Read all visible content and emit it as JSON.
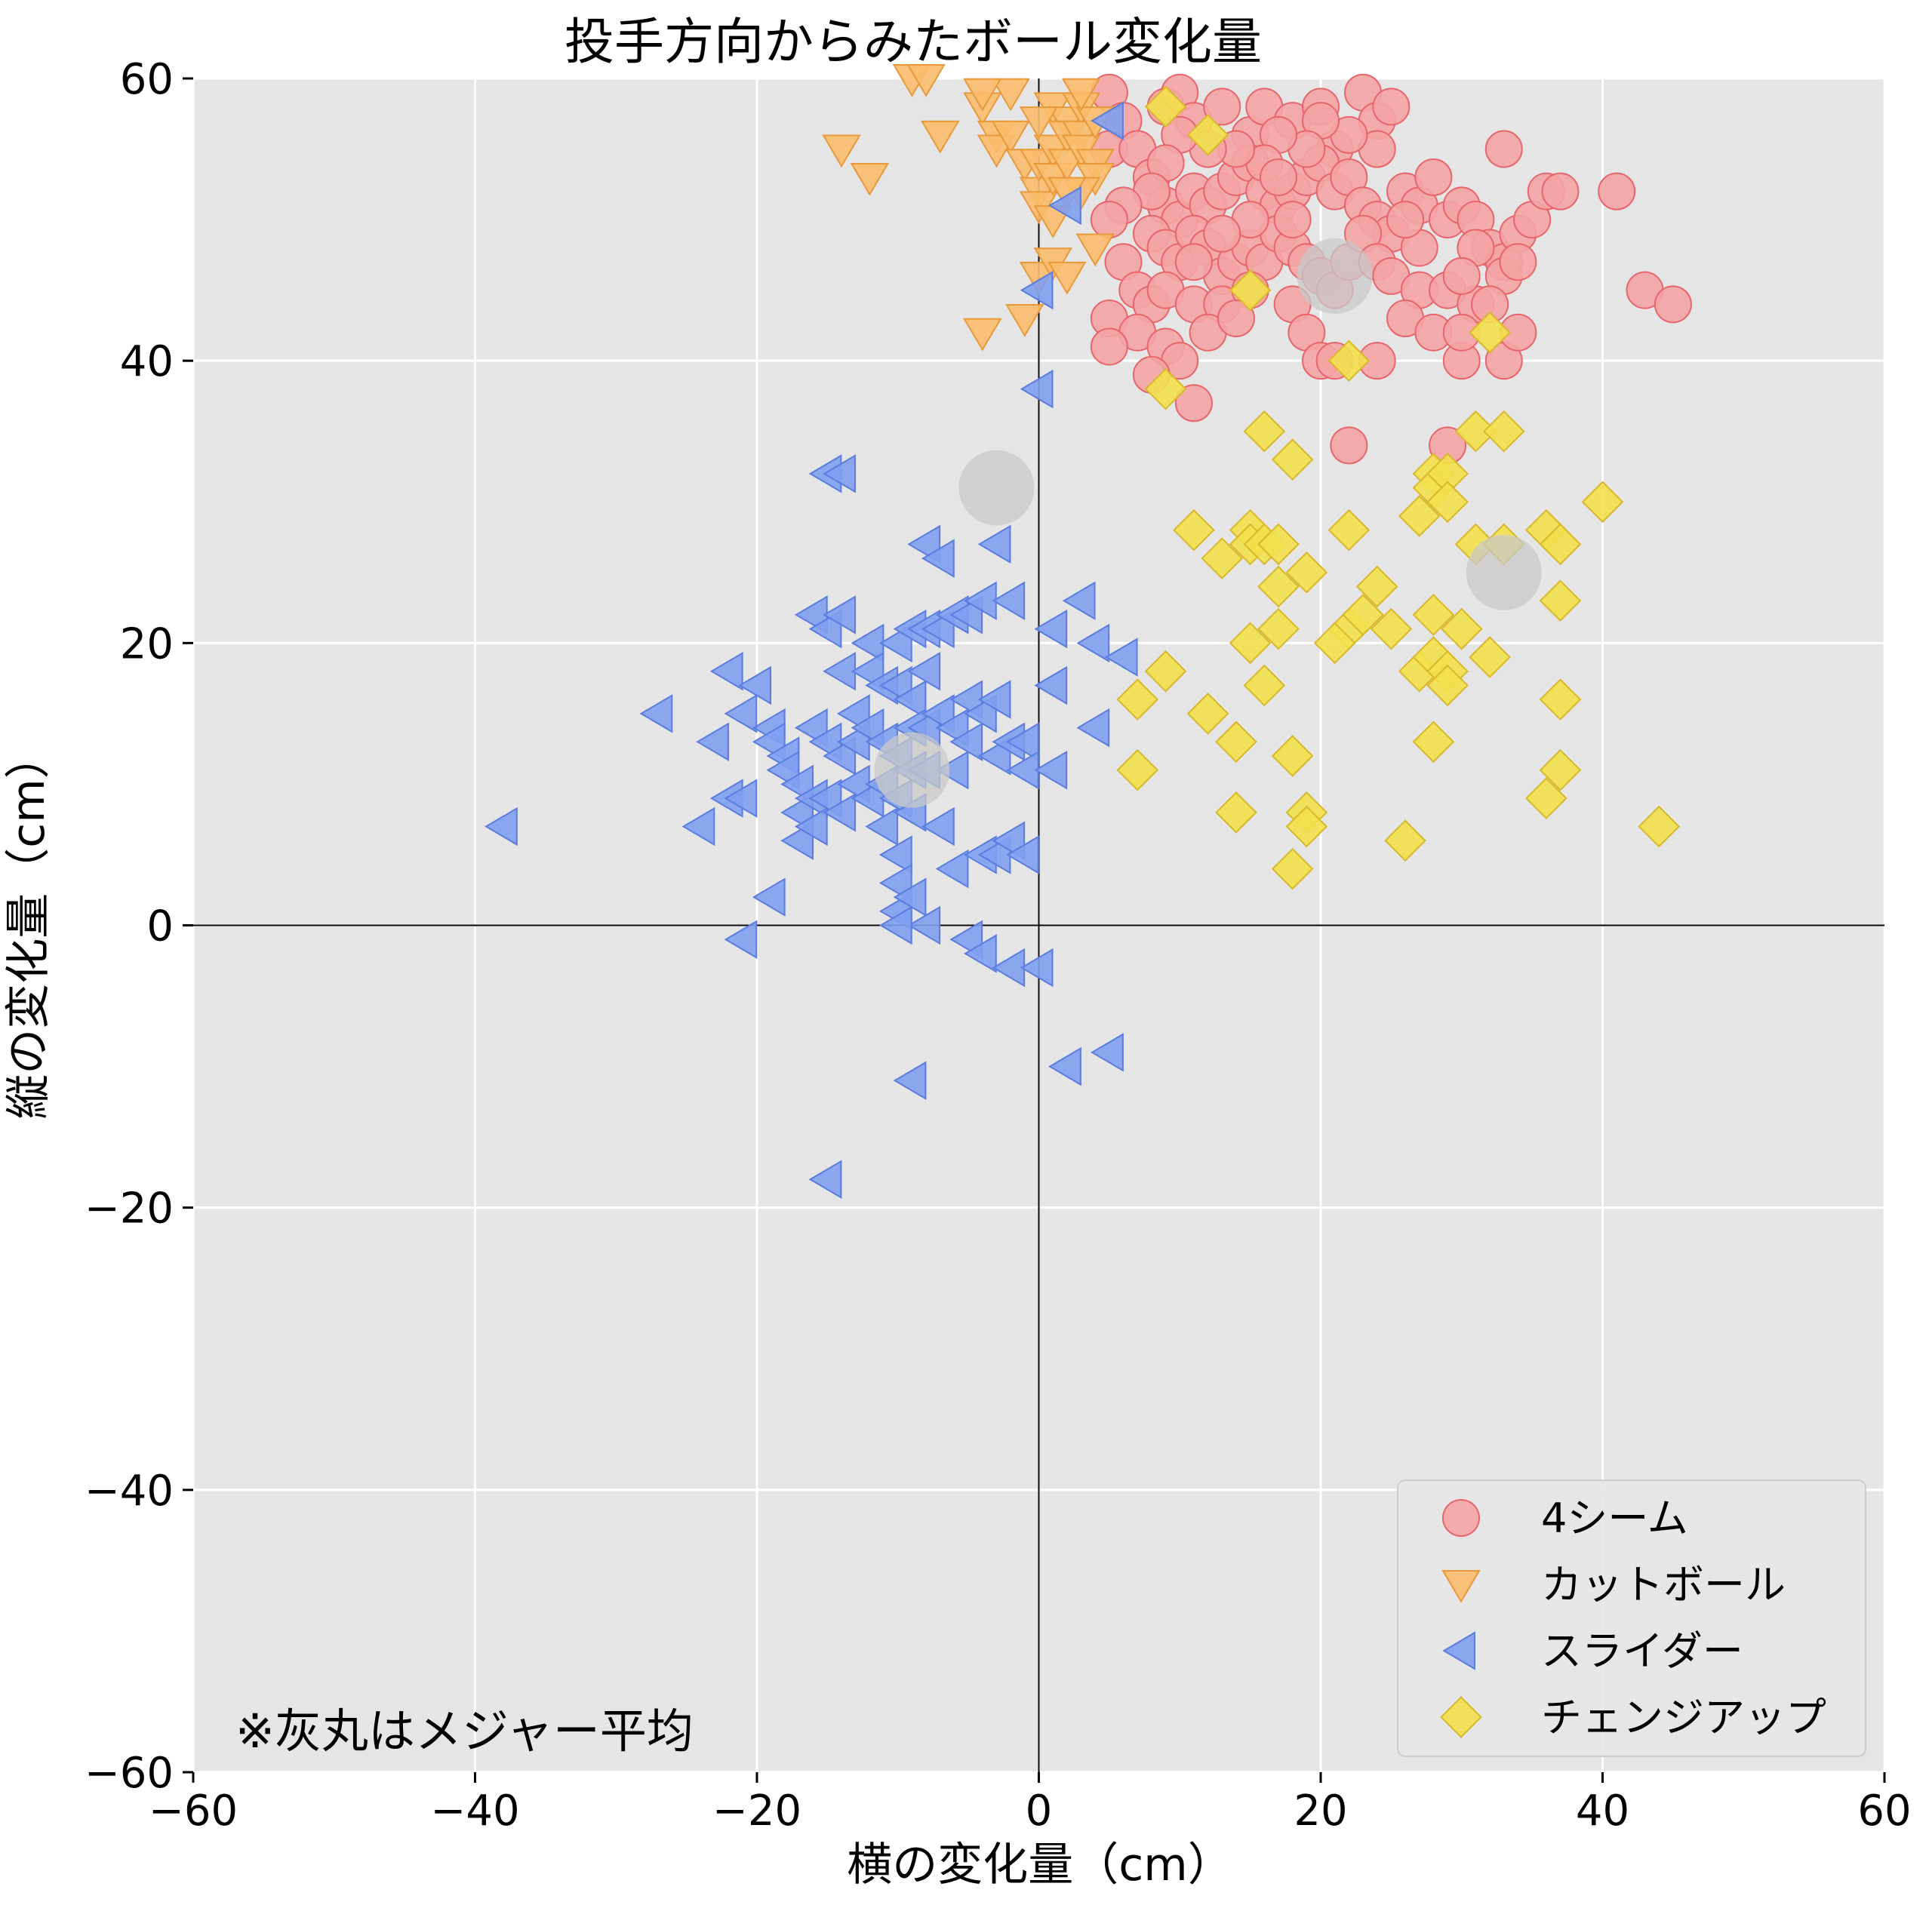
{
  "chart_data": {
    "type": "scatter",
    "title": "投手方向からみたボール変化量",
    "xlabel": "横の変化量（cm）",
    "ylabel": "縦の変化量（cm）",
    "xlim": [
      -60,
      60
    ],
    "ylim": [
      -60,
      60
    ],
    "xticks": [
      -60,
      -40,
      -20,
      0,
      20,
      40,
      60
    ],
    "yticks": [
      -60,
      -40,
      -20,
      0,
      20,
      40,
      60
    ],
    "grid": true,
    "background": "#e5e5e5",
    "legend_position": "bottom-right",
    "note": "※灰丸はメジャー平均",
    "series": [
      {
        "name": "4シーム",
        "marker": "circle",
        "color": "#f4a3a3",
        "edge": "#e8656b",
        "points": [
          [
            5,
            59
          ],
          [
            6,
            57
          ],
          [
            5,
            55
          ],
          [
            7,
            55
          ],
          [
            9,
            58
          ],
          [
            10,
            59
          ],
          [
            11,
            57
          ],
          [
            13,
            58
          ],
          [
            15,
            56
          ],
          [
            16,
            58
          ],
          [
            18,
            57
          ],
          [
            20,
            58
          ],
          [
            21,
            55
          ],
          [
            23,
            59
          ],
          [
            24,
            57
          ],
          [
            25,
            58
          ],
          [
            8,
            53
          ],
          [
            9,
            51
          ],
          [
            10,
            50
          ],
          [
            11,
            52
          ],
          [
            12,
            51
          ],
          [
            13,
            52
          ],
          [
            14,
            53
          ],
          [
            15,
            54
          ],
          [
            16,
            52
          ],
          [
            17,
            51
          ],
          [
            18,
            52
          ],
          [
            19,
            53
          ],
          [
            20,
            54
          ],
          [
            21,
            52
          ],
          [
            22,
            53
          ],
          [
            23,
            51
          ],
          [
            24,
            50
          ],
          [
            25,
            49
          ],
          [
            26,
            52
          ],
          [
            27,
            51
          ],
          [
            28,
            53
          ],
          [
            29,
            50
          ],
          [
            30,
            51
          ],
          [
            31,
            50
          ],
          [
            32,
            48
          ],
          [
            33,
            47
          ],
          [
            34,
            49
          ],
          [
            35,
            50
          ],
          [
            36,
            52
          ],
          [
            8,
            49
          ],
          [
            9,
            48
          ],
          [
            10,
            47
          ],
          [
            11,
            49
          ],
          [
            12,
            48
          ],
          [
            13,
            46
          ],
          [
            14,
            47
          ],
          [
            15,
            48
          ],
          [
            16,
            47
          ],
          [
            17,
            49
          ],
          [
            18,
            48
          ],
          [
            19,
            47
          ],
          [
            20,
            46
          ],
          [
            21,
            45
          ],
          [
            22,
            47
          ],
          [
            23,
            49
          ],
          [
            24,
            47
          ],
          [
            25,
            46
          ],
          [
            27,
            45
          ],
          [
            29,
            45
          ],
          [
            31,
            44
          ],
          [
            33,
            46
          ],
          [
            34,
            47
          ],
          [
            6,
            47
          ],
          [
            7,
            45
          ],
          [
            8,
            44
          ],
          [
            9,
            45
          ],
          [
            11,
            44
          ],
          [
            13,
            44
          ],
          [
            15,
            45
          ],
          [
            5,
            43
          ],
          [
            7,
            42
          ],
          [
            9,
            41
          ],
          [
            10,
            40
          ],
          [
            12,
            42
          ],
          [
            14,
            43
          ],
          [
            18,
            44
          ],
          [
            19,
            42
          ],
          [
            20,
            40
          ],
          [
            21,
            40
          ],
          [
            24,
            40
          ],
          [
            26,
            43
          ],
          [
            28,
            42
          ],
          [
            30,
            40
          ],
          [
            33,
            40
          ],
          [
            34,
            42
          ],
          [
            5,
            41
          ],
          [
            8,
            39
          ],
          [
            11,
            37
          ],
          [
            22,
            34
          ],
          [
            29,
            34
          ],
          [
            37,
            52
          ],
          [
            41,
            52
          ],
          [
            43,
            45
          ],
          [
            45,
            44
          ],
          [
            33,
            55
          ],
          [
            31,
            48
          ],
          [
            30,
            46
          ],
          [
            27,
            48
          ],
          [
            26,
            50
          ],
          [
            24,
            55
          ],
          [
            22,
            56
          ],
          [
            20,
            57
          ],
          [
            19,
            55
          ],
          [
            17,
            56
          ],
          [
            16,
            54
          ],
          [
            14,
            55
          ],
          [
            12,
            55
          ],
          [
            10,
            56
          ],
          [
            9,
            54
          ],
          [
            8,
            52
          ],
          [
            6,
            51
          ],
          [
            5,
            50
          ],
          [
            18,
            50
          ],
          [
            17,
            53
          ],
          [
            15,
            50
          ],
          [
            13,
            49
          ],
          [
            11,
            47
          ],
          [
            30,
            42
          ],
          [
            32,
            44
          ]
        ]
      },
      {
        "name": "カットボール",
        "marker": "triangle_down",
        "color": "#f9bb6b",
        "edge": "#e89a3a",
        "points": [
          [
            -14,
            55
          ],
          [
            -12,
            53
          ],
          [
            -9,
            60
          ],
          [
            -7,
            56
          ],
          [
            -4,
            58
          ],
          [
            -3,
            56
          ],
          [
            -3,
            55
          ],
          [
            -2,
            59
          ],
          [
            -2,
            56
          ],
          [
            -1,
            54
          ],
          [
            0,
            52
          ],
          [
            0,
            51
          ],
          [
            0,
            54
          ],
          [
            1,
            58
          ],
          [
            1,
            55
          ],
          [
            1,
            53
          ],
          [
            2,
            57
          ],
          [
            2,
            56
          ],
          [
            2,
            54
          ],
          [
            3,
            58
          ],
          [
            3,
            56
          ],
          [
            3,
            55
          ],
          [
            4,
            57
          ],
          [
            4,
            54
          ],
          [
            4,
            53
          ],
          [
            3,
            52
          ],
          [
            2,
            52
          ],
          [
            1,
            50
          ],
          [
            -4,
            42
          ],
          [
            -1,
            43
          ],
          [
            0,
            46
          ],
          [
            1,
            47
          ],
          [
            2,
            46
          ],
          [
            4,
            48
          ],
          [
            -8,
            60
          ],
          [
            -4,
            59
          ],
          [
            0,
            57
          ],
          [
            3,
            59
          ]
        ]
      },
      {
        "name": "スライダー",
        "marker": "triangle_left",
        "color": "#7f9ff0",
        "edge": "#5a7de0",
        "points": [
          [
            -38,
            7
          ],
          [
            -27,
            15
          ],
          [
            -24,
            7
          ],
          [
            -23,
            13
          ],
          [
            -22,
            9
          ],
          [
            -22,
            18
          ],
          [
            -21,
            15
          ],
          [
            -21,
            9
          ],
          [
            -20,
            17
          ],
          [
            -19,
            14
          ],
          [
            -19,
            13
          ],
          [
            -18,
            12
          ],
          [
            -18,
            11
          ],
          [
            -17,
            10
          ],
          [
            -17,
            8
          ],
          [
            -17,
            6
          ],
          [
            -16,
            22
          ],
          [
            -16,
            14
          ],
          [
            -16,
            9
          ],
          [
            -16,
            7
          ],
          [
            -15,
            32
          ],
          [
            -15,
            21
          ],
          [
            -15,
            13
          ],
          [
            -15,
            9
          ],
          [
            -14,
            32
          ],
          [
            -14,
            22
          ],
          [
            -14,
            18
          ],
          [
            -14,
            12
          ],
          [
            -14,
            8
          ],
          [
            -13,
            15
          ],
          [
            -13,
            13
          ],
          [
            -13,
            10
          ],
          [
            -12,
            20
          ],
          [
            -12,
            18
          ],
          [
            -12,
            14
          ],
          [
            -12,
            9
          ],
          [
            -11,
            17
          ],
          [
            -11,
            13
          ],
          [
            -11,
            10
          ],
          [
            -11,
            7
          ],
          [
            -10,
            20
          ],
          [
            -10,
            17
          ],
          [
            -10,
            12
          ],
          [
            -10,
            9
          ],
          [
            -10,
            5
          ],
          [
            -10,
            3
          ],
          [
            -10,
            1
          ],
          [
            -9,
            21
          ],
          [
            -9,
            16
          ],
          [
            -9,
            14
          ],
          [
            -9,
            11
          ],
          [
            -9,
            8
          ],
          [
            -8,
            27
          ],
          [
            -8,
            21
          ],
          [
            -8,
            18
          ],
          [
            -8,
            14
          ],
          [
            -8,
            11
          ],
          [
            -7,
            26
          ],
          [
            -7,
            21
          ],
          [
            -7,
            15
          ],
          [
            -7,
            7
          ],
          [
            -6,
            22
          ],
          [
            -6,
            14
          ],
          [
            -6,
            11
          ],
          [
            -6,
            4
          ],
          [
            -5,
            22
          ],
          [
            -5,
            16
          ],
          [
            -5,
            13
          ],
          [
            -4,
            23
          ],
          [
            -4,
            15
          ],
          [
            -4,
            5
          ],
          [
            -3,
            27
          ],
          [
            -3,
            16
          ],
          [
            -3,
            12
          ],
          [
            -3,
            5
          ],
          [
            -2,
            23
          ],
          [
            -2,
            13
          ],
          [
            -2,
            6
          ],
          [
            -1,
            13
          ],
          [
            -1,
            11
          ],
          [
            -1,
            5
          ],
          [
            0,
            38
          ],
          [
            0,
            45
          ],
          [
            1,
            11
          ],
          [
            1,
            17
          ],
          [
            1,
            21
          ],
          [
            2,
            51
          ],
          [
            3,
            23
          ],
          [
            4,
            20
          ],
          [
            4,
            14
          ],
          [
            5,
            57
          ],
          [
            6,
            19
          ],
          [
            -8,
            0
          ],
          [
            -9,
            2
          ],
          [
            -10,
            0
          ],
          [
            -5,
            -1
          ],
          [
            -4,
            -2
          ],
          [
            -2,
            -3
          ],
          [
            -21,
            -1
          ],
          [
            -19,
            2
          ],
          [
            -9,
            -11
          ],
          [
            -15,
            -18
          ],
          [
            2,
            -10
          ],
          [
            5,
            -9
          ],
          [
            0,
            -3
          ]
        ]
      },
      {
        "name": "チェンジアップ",
        "marker": "diamond",
        "color": "#f2e04a",
        "edge": "#d8b82b",
        "points": [
          [
            9,
            58
          ],
          [
            12,
            56
          ],
          [
            15,
            45
          ],
          [
            9,
            38
          ],
          [
            22,
            40
          ],
          [
            32,
            42
          ],
          [
            16,
            35
          ],
          [
            18,
            33
          ],
          [
            11,
            28
          ],
          [
            13,
            26
          ],
          [
            15,
            28
          ],
          [
            15,
            27
          ],
          [
            16,
            27
          ],
          [
            17,
            24
          ],
          [
            17,
            27
          ],
          [
            19,
            25
          ],
          [
            22,
            28
          ],
          [
            24,
            24
          ],
          [
            27,
            29
          ],
          [
            28,
            32
          ],
          [
            28,
            31
          ],
          [
            29,
            32
          ],
          [
            29,
            30
          ],
          [
            31,
            35
          ],
          [
            33,
            35
          ],
          [
            31,
            27
          ],
          [
            36,
            28
          ],
          [
            37,
            27
          ],
          [
            37,
            23
          ],
          [
            40,
            30
          ],
          [
            28,
            22
          ],
          [
            25,
            21
          ],
          [
            22,
            21
          ],
          [
            21,
            20
          ],
          [
            23,
            22
          ],
          [
            27,
            18
          ],
          [
            28,
            19
          ],
          [
            29,
            18
          ],
          [
            30,
            21
          ],
          [
            29,
            17
          ],
          [
            32,
            19
          ],
          [
            15,
            20
          ],
          [
            17,
            21
          ],
          [
            16,
            17
          ],
          [
            9,
            18
          ],
          [
            7,
            16
          ],
          [
            12,
            15
          ],
          [
            14,
            13
          ],
          [
            7,
            11
          ],
          [
            14,
            8
          ],
          [
            18,
            12
          ],
          [
            19,
            8
          ],
          [
            19,
            7
          ],
          [
            18,
            4
          ],
          [
            26,
            6
          ],
          [
            28,
            13
          ],
          [
            36,
            9
          ],
          [
            37,
            16
          ],
          [
            37,
            11
          ],
          [
            44,
            7
          ],
          [
            33,
            27
          ]
        ]
      }
    ],
    "mlb_averages": [
      {
        "name": "4シーム",
        "x": 21,
        "y": 46
      },
      {
        "name": "カットボール",
        "x": -3,
        "y": 31
      },
      {
        "name": "スライダー",
        "x": -9,
        "y": 11
      },
      {
        "name": "チェンジアップ",
        "x": 33,
        "y": 25
      }
    ]
  }
}
